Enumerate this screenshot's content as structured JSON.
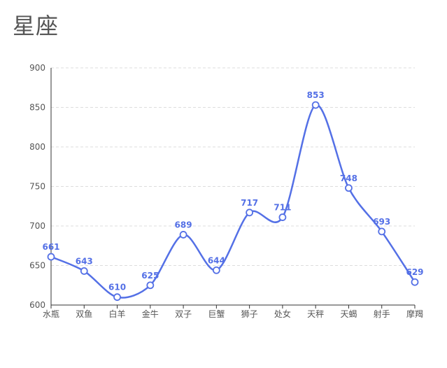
{
  "chart_data": {
    "type": "line",
    "title": "星座",
    "categories": [
      "水瓶",
      "双鱼",
      "白羊",
      "金牛",
      "双子",
      "巨蟹",
      "狮子",
      "处女",
      "天秤",
      "天蝎",
      "射手",
      "摩羯"
    ],
    "values": [
      661,
      643,
      610,
      625,
      689,
      644,
      717,
      711,
      853,
      748,
      693,
      629
    ],
    "ylim": [
      600,
      900
    ],
    "yticks": [
      600,
      650,
      700,
      750,
      800,
      850,
      900
    ],
    "grid": true,
    "smooth": true,
    "colors": {
      "line": "#5470e6",
      "label": "#5470e6",
      "axis": "#555555",
      "grid": "#dddddd",
      "marker_fill": "#ffffff"
    }
  }
}
